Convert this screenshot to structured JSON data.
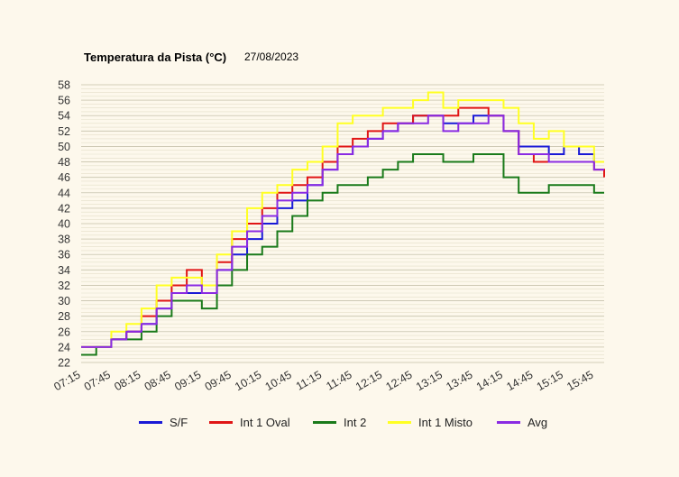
{
  "chart_data": {
    "type": "line",
    "title": "Temperatura da Pista (°C)",
    "subtitle": "27/08/2023",
    "xlabel": "",
    "ylabel": "",
    "ylim": [
      22,
      58
    ],
    "yticks": [
      22,
      24,
      26,
      28,
      30,
      32,
      34,
      36,
      38,
      40,
      42,
      44,
      46,
      48,
      50,
      52,
      54,
      56,
      58
    ],
    "x_ticks": [
      "07:15",
      "07:45",
      "08:15",
      "08:45",
      "09:15",
      "09:45",
      "10:15",
      "10:45",
      "11:15",
      "11:45",
      "12:15",
      "12:45",
      "13:15",
      "13:45",
      "14:15",
      "14:45",
      "15:15",
      "15:45"
    ],
    "grid": true,
    "legend_position": "bottom",
    "x": [
      "07:15",
      "07:30",
      "07:45",
      "08:00",
      "08:15",
      "08:30",
      "08:45",
      "09:00",
      "09:15",
      "09:30",
      "09:45",
      "10:00",
      "10:15",
      "10:30",
      "10:45",
      "11:00",
      "11:15",
      "11:30",
      "11:45",
      "12:00",
      "12:15",
      "12:30",
      "12:45",
      "13:00",
      "13:15",
      "13:30",
      "13:45",
      "14:00",
      "14:15",
      "14:30",
      "14:45",
      "15:00",
      "15:15",
      "15:30",
      "15:45",
      "15:55"
    ],
    "series": [
      {
        "name": "S/F",
        "color": "#1a1ad6",
        "values": [
          24,
          24,
          25,
          26,
          27,
          29,
          31,
          31,
          31,
          34,
          36,
          38,
          40,
          42,
          43,
          45,
          47,
          49,
          50,
          51,
          52,
          53,
          54,
          54,
          53,
          53,
          54,
          54,
          52,
          50,
          50,
          49,
          50,
          49,
          48,
          48
        ]
      },
      {
        "name": "Int 1 Oval",
        "color": "#e01515",
        "values": [
          24,
          24,
          25,
          26,
          28,
          30,
          32,
          34,
          32,
          35,
          38,
          40,
          42,
          44,
          45,
          46,
          48,
          50,
          51,
          52,
          53,
          53,
          54,
          54,
          54,
          55,
          55,
          54,
          52,
          49,
          48,
          48,
          48,
          48,
          47,
          46
        ]
      },
      {
        "name": "Int 2",
        "color": "#1a7a1a",
        "values": [
          23,
          24,
          25,
          25,
          26,
          28,
          30,
          30,
          29,
          32,
          34,
          36,
          37,
          39,
          41,
          43,
          44,
          45,
          45,
          46,
          47,
          48,
          49,
          49,
          48,
          48,
          49,
          49,
          46,
          44,
          44,
          45,
          45,
          45,
          44,
          44
        ]
      },
      {
        "name": "Int 1 Misto",
        "color": "#ffff22",
        "values": [
          24,
          24,
          26,
          27,
          29,
          32,
          33,
          33,
          32,
          36,
          39,
          42,
          44,
          45,
          47,
          48,
          50,
          53,
          54,
          54,
          55,
          55,
          56,
          57,
          55,
          56,
          56,
          56,
          55,
          53,
          51,
          52,
          50,
          50,
          48,
          48
        ]
      },
      {
        "name": "Avg",
        "color": "#8a2be2",
        "values": [
          24,
          24,
          25,
          26,
          27,
          29,
          31,
          32,
          31,
          34,
          37,
          39,
          41,
          43,
          44,
          45,
          47,
          49,
          50,
          51,
          52,
          53,
          53,
          54,
          52,
          53,
          53,
          54,
          52,
          49,
          49,
          48,
          48,
          48,
          47,
          47
        ]
      }
    ]
  }
}
